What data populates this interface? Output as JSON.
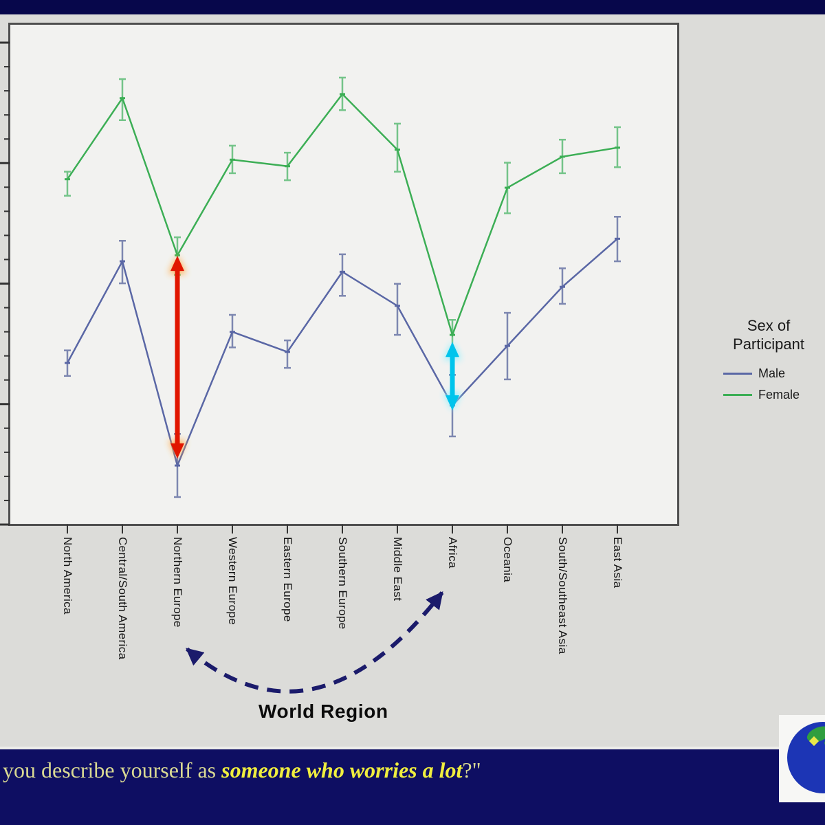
{
  "slide": {
    "background_color": "#dcdcd9",
    "top_bar_color": "#07074b"
  },
  "chart": {
    "plot_background": "#f2f2f0",
    "plot_border_color": "#4f4f4f",
    "axis_title": "World Region",
    "axis_title_color": "#0b0b0b",
    "annotation_arrow_color": "#1b1b6b",
    "tick_color": "#333333",
    "legend": {
      "title_line1": "Sex of",
      "title_line2": "Participant",
      "text_color": "#1a1a1a"
    }
  },
  "chart_data": {
    "type": "line",
    "error_bars": true,
    "x_axis_title": "World Region",
    "categories": [
      "North America",
      "Central/South America",
      "Northern Europe",
      "Western Europe",
      "Eastern Europe",
      "Southern Europe",
      "Middle East",
      "Africa",
      "Oceania",
      "South/Southeast Asia",
      "East Asia"
    ],
    "y_axis": {
      "tick_labels_visible": false,
      "major_divisions": 4,
      "minor_ticks_per_division": 4
    },
    "legend_position": "right",
    "series": [
      {
        "name": "Male",
        "color": "#5a67a5",
        "error_bar_color": "#7d87b0",
        "values_fraction_of_axis": [
          0.323,
          0.526,
          0.118,
          0.385,
          0.345,
          0.505,
          0.437,
          0.238,
          0.357,
          0.475,
          0.571
        ],
        "error_high_fraction": [
          0.348,
          0.567,
          0.181,
          0.419,
          0.368,
          0.54,
          0.481,
          0.299,
          0.423,
          0.512,
          0.615
        ],
        "error_low_fraction": [
          0.297,
          0.482,
          0.055,
          0.354,
          0.313,
          0.457,
          0.379,
          0.176,
          0.29,
          0.441,
          0.526
        ]
      },
      {
        "name": "Female",
        "color": "#3cae55",
        "error_bar_color": "#74c489",
        "values_fraction_of_axis": [
          0.69,
          0.852,
          0.538,
          0.729,
          0.716,
          0.86,
          0.749,
          0.379,
          0.673,
          0.735,
          0.753
        ],
        "error_high_fraction": [
          0.705,
          0.89,
          0.574,
          0.757,
          0.743,
          0.893,
          0.801,
          0.409,
          0.723,
          0.769,
          0.794
        ],
        "error_low_fraction": [
          0.657,
          0.808,
          0.499,
          0.702,
          0.688,
          0.828,
          0.705,
          0.338,
          0.622,
          0.702,
          0.714
        ]
      }
    ],
    "annotations": [
      {
        "type": "double-arrow",
        "category": "Northern Europe",
        "color": "#e11600",
        "glow_color": "#ffaa45",
        "from_fraction": 0.537,
        "to_fraction": 0.132
      },
      {
        "type": "double-arrow",
        "category": "Africa",
        "color": "#00c4ec",
        "glow_color": "#8ff0ff",
        "from_fraction": 0.365,
        "to_fraction": 0.228
      },
      {
        "type": "dashed-double-arrow",
        "from_category": "Northern Europe",
        "to_category": "Africa",
        "color": "#1b1b6b"
      }
    ]
  },
  "footer": {
    "bar_color": "#0e0e62",
    "divider_color": "#ededea",
    "question_prefix": "you describe yourself as ",
    "question_emphasis": "someone who worries a lot",
    "question_suffix": "?\"",
    "prefix_color": "#d9d993",
    "emphasis_color": "#f0ee3e"
  },
  "logo": {
    "background": "#f7f7f5",
    "globe_color": "#1c35b5",
    "land_color": "#2f9e3f",
    "spark_color": "#e8e84a"
  }
}
